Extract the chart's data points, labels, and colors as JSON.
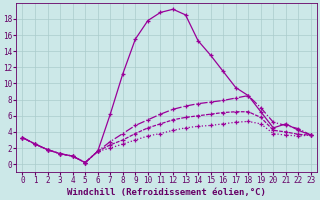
{
  "background_color": "#cce8e8",
  "grid_color": "#aacccc",
  "line_color": "#990099",
  "xlabel": "Windchill (Refroidissement éolien,°C)",
  "xlim": [
    -0.5,
    23.5
  ],
  "ylim": [
    -1,
    20
  ],
  "xticks": [
    0,
    1,
    2,
    3,
    4,
    5,
    6,
    7,
    8,
    9,
    10,
    11,
    12,
    13,
    14,
    15,
    16,
    17,
    18,
    19,
    20,
    21,
    22,
    23
  ],
  "yticks": [
    0,
    2,
    4,
    6,
    8,
    10,
    12,
    14,
    16,
    18
  ],
  "curve1_x": [
    0,
    1,
    2,
    3,
    4,
    5,
    6,
    7,
    8,
    9,
    10,
    11,
    12,
    13,
    14,
    15,
    16,
    17,
    18,
    19,
    20,
    21,
    22,
    23
  ],
  "curve1_y": [
    3.3,
    2.5,
    1.8,
    1.3,
    1.0,
    0.2,
    1.6,
    6.2,
    11.2,
    15.5,
    17.8,
    18.8,
    19.2,
    18.5,
    15.3,
    13.5,
    11.5,
    9.5,
    8.5,
    6.5,
    4.5,
    5.0,
    4.2,
    3.6
  ],
  "curve2_x": [
    0,
    1,
    2,
    3,
    4,
    5,
    6,
    7,
    8,
    9,
    10,
    11,
    12,
    13,
    14,
    15,
    16,
    17,
    18,
    19,
    20,
    21,
    22,
    23
  ],
  "curve2_y": [
    3.3,
    2.5,
    1.8,
    1.3,
    1.0,
    0.2,
    1.6,
    2.8,
    3.8,
    4.8,
    5.5,
    6.2,
    6.8,
    7.2,
    7.5,
    7.7,
    7.9,
    8.2,
    8.5,
    7.0,
    5.2,
    4.8,
    4.4,
    3.6
  ],
  "curve3_x": [
    0,
    1,
    2,
    3,
    4,
    5,
    6,
    7,
    8,
    9,
    10,
    11,
    12,
    13,
    14,
    15,
    16,
    17,
    18,
    19,
    20,
    21,
    22,
    23
  ],
  "curve3_y": [
    3.3,
    2.5,
    1.8,
    1.3,
    1.0,
    0.2,
    1.6,
    2.4,
    3.0,
    3.8,
    4.5,
    5.0,
    5.5,
    5.8,
    6.0,
    6.2,
    6.4,
    6.5,
    6.5,
    5.8,
    4.2,
    4.0,
    3.7,
    3.6
  ],
  "curve4_x": [
    0,
    1,
    2,
    3,
    4,
    5,
    6,
    7,
    8,
    9,
    10,
    11,
    12,
    13,
    14,
    15,
    16,
    17,
    18,
    19,
    20,
    21,
    22,
    23
  ],
  "curve4_y": [
    3.3,
    2.5,
    1.8,
    1.3,
    1.0,
    0.2,
    1.6,
    2.0,
    2.5,
    3.0,
    3.5,
    3.8,
    4.2,
    4.5,
    4.7,
    4.8,
    5.0,
    5.2,
    5.3,
    5.0,
    3.8,
    3.6,
    3.5,
    3.6
  ],
  "marker": "+",
  "markersize": 3,
  "linewidth": 0.9,
  "tick_fontsize": 5.5,
  "label_fontsize": 6.5,
  "tick_color": "#660066",
  "text_color": "#660066"
}
